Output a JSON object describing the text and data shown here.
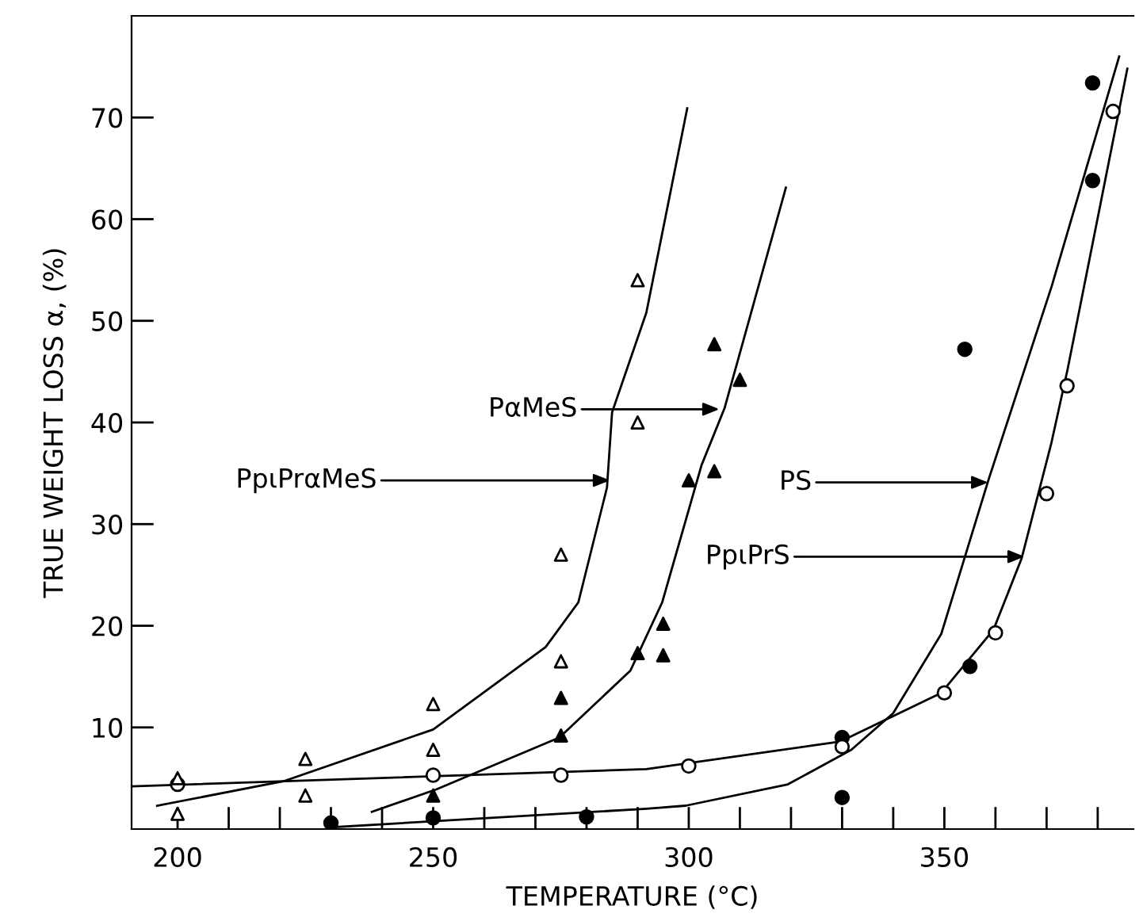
{
  "chart_data": {
    "type": "scatter",
    "xlabel": "TEMPERATURE (°C)",
    "ylabel": "TRUE WEIGHT LOSS α, (%)",
    "xlim": [
      191,
      387
    ],
    "ylim": [
      0,
      80
    ],
    "xticks": [
      {
        "value": 200,
        "label": "200"
      },
      {
        "value": 210,
        "label": null
      },
      {
        "value": 220,
        "label": null
      },
      {
        "value": 230,
        "label": null
      },
      {
        "value": 240,
        "label": null
      },
      {
        "value": 250,
        "label": "250"
      },
      {
        "value": 260,
        "label": null
      },
      {
        "value": 270,
        "label": null
      },
      {
        "value": 280,
        "label": null
      },
      {
        "value": 290,
        "label": null
      },
      {
        "value": 300,
        "label": "300"
      },
      {
        "value": 310,
        "label": null
      },
      {
        "value": 320,
        "label": null
      },
      {
        "value": 330,
        "label": null
      },
      {
        "value": 340,
        "label": null
      },
      {
        "value": 350,
        "label": "350"
      },
      {
        "value": 360,
        "label": null
      },
      {
        "value": 370,
        "label": null
      },
      {
        "value": 380,
        "label": null
      }
    ],
    "yticks": [
      10,
      20,
      30,
      40,
      50,
      60,
      70
    ],
    "grid": false,
    "legend": false,
    "series": [
      {
        "marker": "triangle",
        "color": "#ffffff",
        "x": [
          200,
          200,
          225,
          225,
          250,
          250,
          275,
          275,
          290,
          290
        ],
        "values": [
          5,
          1.5,
          6.9,
          3.3,
          12.3,
          7.8,
          27,
          16.5,
          54,
          40
        ]
      },
      {
        "marker": "triangle",
        "color": "#000000",
        "x": [
          250,
          275,
          275,
          290,
          295,
          295,
          300,
          305,
          305,
          310
        ],
        "values": [
          3.3,
          9.2,
          12.9,
          17.3,
          20.2,
          17.1,
          34.3,
          35.2,
          47.7,
          44.2
        ]
      },
      {
        "marker": "circle",
        "color": "#000000",
        "x": [
          230,
          250,
          280,
          330,
          330,
          355,
          354,
          379,
          379
        ],
        "values": [
          0.6,
          1.1,
          1.2,
          9,
          3.1,
          16,
          47.2,
          63.8,
          73.4
        ]
      },
      {
        "marker": "circle",
        "color": "#ffffff",
        "x": [
          200,
          250,
          275,
          300,
          330,
          350,
          360,
          370,
          374,
          383
        ],
        "values": [
          4.4,
          5.3,
          5.3,
          6.2,
          8.1,
          13.4,
          19.3,
          33,
          43.6,
          70.6
        ]
      },
      {
        "type": "line",
        "marker": "none",
        "color": "#000000",
        "x": [
          196,
          220.7,
          250,
          272,
          278.4,
          284,
          285,
          291.7,
          299.7
        ],
        "values": [
          2.3,
          4.7,
          9.8,
          17.9,
          22.3,
          33.6,
          41,
          50.8,
          70.9
        ]
      },
      {
        "type": "line",
        "marker": "none",
        "color": "#000000",
        "x": [
          238,
          250.6,
          274.7,
          288.6,
          294.8,
          302.5,
          307,
          319
        ],
        "values": [
          1.7,
          3.9,
          9,
          15.6,
          22.3,
          35.8,
          41.4,
          63.1
        ]
      },
      {
        "type": "line",
        "marker": "none",
        "color": "#000000",
        "x": [
          230.9,
          291.7,
          299.4,
          319.4,
          331.8,
          340,
          349.4,
          358.6,
          371,
          384.2
        ],
        "values": [
          0.2,
          2,
          2.3,
          4.4,
          7.8,
          11.4,
          19.2,
          34.3,
          53.4,
          76
        ]
      },
      {
        "type": "line",
        "marker": "none",
        "color": "#000000",
        "x": [
          191,
          291.7,
          329.6,
          349.4,
          359.6,
          365.1,
          370.9,
          374.1,
          385.8
        ],
        "values": [
          4.2,
          5.9,
          8.6,
          13.4,
          19.6,
          26.6,
          37.9,
          45.2,
          74.8
        ]
      }
    ],
    "annotations": [
      {
        "text": "PpιPrαMeS",
        "x": 284.6,
        "y": 34.3
      },
      {
        "text": "PαMeS",
        "x": 306,
        "y": 41.3
      },
      {
        "text": "PS",
        "x": 358.6,
        "y": 34.1
      },
      {
        "text": "PpιPrS",
        "x": 365.7,
        "y": 26.8
      }
    ]
  }
}
